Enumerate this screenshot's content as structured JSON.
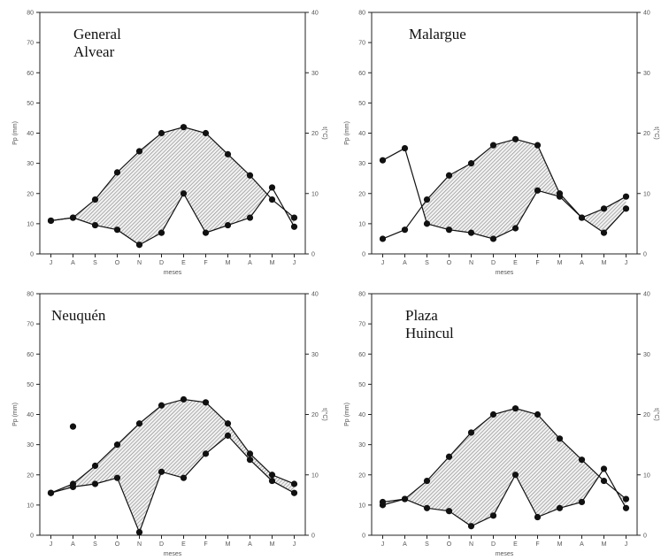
{
  "chart_data": [
    {
      "type": "line",
      "title_lines": [
        "General",
        "Alvear"
      ],
      "xlabel": "meses",
      "ylabel_left": "Pp (mm)",
      "ylabel_right": "t(°C)",
      "categories": [
        "J",
        "A",
        "S",
        "O",
        "N",
        "D",
        "E",
        "F",
        "M",
        "A",
        "M",
        "J"
      ],
      "ylim_left": [
        0,
        80
      ],
      "ylim_right": [
        0,
        40
      ],
      "yticks_left": [
        "0",
        "10",
        "20",
        "30",
        "40",
        "50",
        "60",
        "70",
        "80"
      ],
      "yticks_right": [
        "0",
        "10",
        "20",
        "30",
        "40"
      ],
      "shaded_between_series": true,
      "series": [
        {
          "axis": "left",
          "values": [
            11,
            12,
            9.5,
            8,
            3,
            7,
            20,
            7,
            9.5,
            12,
            22,
            9
          ]
        },
        {
          "axis": "right",
          "values": [
            5.5,
            6,
            9,
            13.5,
            17,
            20,
            21,
            20,
            16.5,
            13,
            9,
            6
          ]
        }
      ]
    },
    {
      "type": "line",
      "title_lines": [
        "Malargue"
      ],
      "xlabel": "meses",
      "ylabel_left": "Pp (mm)",
      "ylabel_right": "t(°C)",
      "categories": [
        "J",
        "A",
        "S",
        "O",
        "N",
        "D",
        "E",
        "F",
        "M",
        "A",
        "M",
        "J"
      ],
      "ylim_left": [
        0,
        80
      ],
      "ylim_right": [
        0,
        40
      ],
      "yticks_left": [
        "0",
        "10",
        "20",
        "30",
        "40",
        "50",
        "60",
        "70",
        "80"
      ],
      "yticks_right": [
        "0",
        "10",
        "20",
        "30",
        "40"
      ],
      "shaded_between_series": true,
      "series": [
        {
          "axis": "left",
          "values": [
            31,
            35,
            10,
            8,
            7,
            5,
            8.5,
            21,
            19,
            12,
            7,
            15
          ]
        },
        {
          "axis": "right",
          "values": [
            2.5,
            4,
            9,
            13,
            15,
            18,
            19,
            18,
            10,
            6,
            7.5,
            9.5
          ]
        }
      ]
    },
    {
      "type": "line",
      "title_lines": [
        "Neuquén"
      ],
      "xlabel": "meses",
      "ylabel_left": "Pp (mm)",
      "ylabel_right": "t(°C)",
      "categories": [
        "J",
        "A",
        "S",
        "O",
        "N",
        "D",
        "E",
        "F",
        "M",
        "A",
        "M",
        "J"
      ],
      "ylim_left": [
        0,
        80
      ],
      "ylim_right": [
        0,
        40
      ],
      "yticks_left": [
        "0",
        "10",
        "20",
        "30",
        "40",
        "50",
        "60",
        "70",
        "80"
      ],
      "yticks_right": [
        "0",
        "10",
        "20",
        "30",
        "40"
      ],
      "shaded_between_series": true,
      "outlier_point": {
        "x": "A",
        "value": 36,
        "axis": "left"
      },
      "series": [
        {
          "axis": "left",
          "values": [
            14,
            16,
            17,
            19,
            1,
            21,
            19,
            27,
            33,
            25,
            18,
            14
          ]
        },
        {
          "axis": "right",
          "values": [
            7,
            8.5,
            11.5,
            15,
            18.5,
            21.5,
            22.5,
            22,
            18.5,
            13.5,
            10,
            8.5
          ]
        }
      ]
    },
    {
      "type": "line",
      "title_lines": [
        "Plaza",
        "Huincul"
      ],
      "xlabel": "meses",
      "ylabel_left": "Pp (mm)",
      "ylabel_right": "t(°C)",
      "categories": [
        "J",
        "A",
        "S",
        "O",
        "N",
        "D",
        "E",
        "F",
        "M",
        "A",
        "M",
        "J"
      ],
      "ylim_left": [
        0,
        80
      ],
      "ylim_right": [
        0,
        40
      ],
      "yticks_left": [
        "0",
        "10",
        "20",
        "30",
        "40",
        "50",
        "60",
        "70",
        "80"
      ],
      "yticks_right": [
        "0",
        "10",
        "20",
        "30",
        "40"
      ],
      "shaded_between_series": true,
      "series": [
        {
          "axis": "left",
          "values": [
            10,
            12,
            9,
            8,
            3,
            6.5,
            20,
            6,
            9,
            11,
            22,
            9
          ]
        },
        {
          "axis": "right",
          "values": [
            5.5,
            6,
            9,
            13,
            17,
            20,
            21,
            20,
            16,
            12.5,
            9,
            6
          ]
        }
      ]
    }
  ]
}
